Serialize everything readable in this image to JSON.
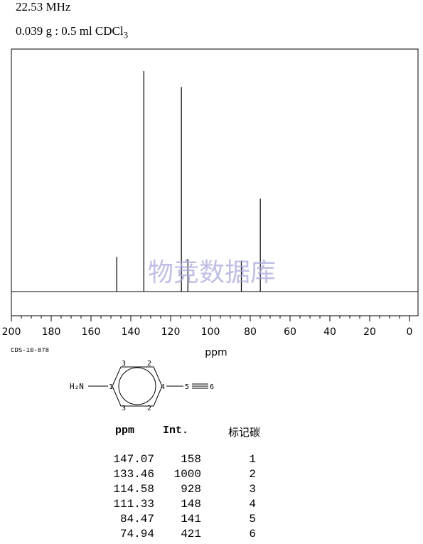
{
  "header": {
    "frequency": "22.53 MHz",
    "sample": "0.039 g : 0.5 ml CDCl",
    "sample_subscript": "3"
  },
  "chart_data": {
    "type": "line",
    "xlabel": "ppm",
    "xlim": [
      200,
      0
    ],
    "x_ticks": [
      "200",
      "180",
      "160",
      "140",
      "120",
      "100",
      "80",
      "60",
      "40",
      "20",
      "0"
    ],
    "peaks": [
      {
        "ppm": 147.07,
        "intensity": 158
      },
      {
        "ppm": 133.46,
        "intensity": 1000
      },
      {
        "ppm": 114.58,
        "intensity": 928
      },
      {
        "ppm": 111.33,
        "intensity": 148
      },
      {
        "ppm": 84.47,
        "intensity": 141
      },
      {
        "ppm": 74.94,
        "intensity": 421
      }
    ],
    "grid": false,
    "watermark": "物竞数据库"
  },
  "spectrum_code": "CDS-10-878",
  "structure": {
    "amine": "H₂N",
    "ring_labels": [
      "1",
      "2",
      "2",
      "3",
      "3",
      "4"
    ],
    "chain_labels": [
      "5",
      "6"
    ]
  },
  "table": {
    "headers": [
      "ppm",
      "Int.",
      "标记碳"
    ],
    "rows": [
      {
        "ppm": "147.07",
        "int": "158",
        "carbon": "1"
      },
      {
        "ppm": "133.46",
        "int": "1000",
        "carbon": "2"
      },
      {
        "ppm": "114.58",
        "int": "928",
        "carbon": "3"
      },
      {
        "ppm": "111.33",
        "int": "148",
        "carbon": "4"
      },
      {
        "ppm": "84.47",
        "int": "141",
        "carbon": "5"
      },
      {
        "ppm": "74.94",
        "int": "421",
        "carbon": "6"
      }
    ]
  }
}
